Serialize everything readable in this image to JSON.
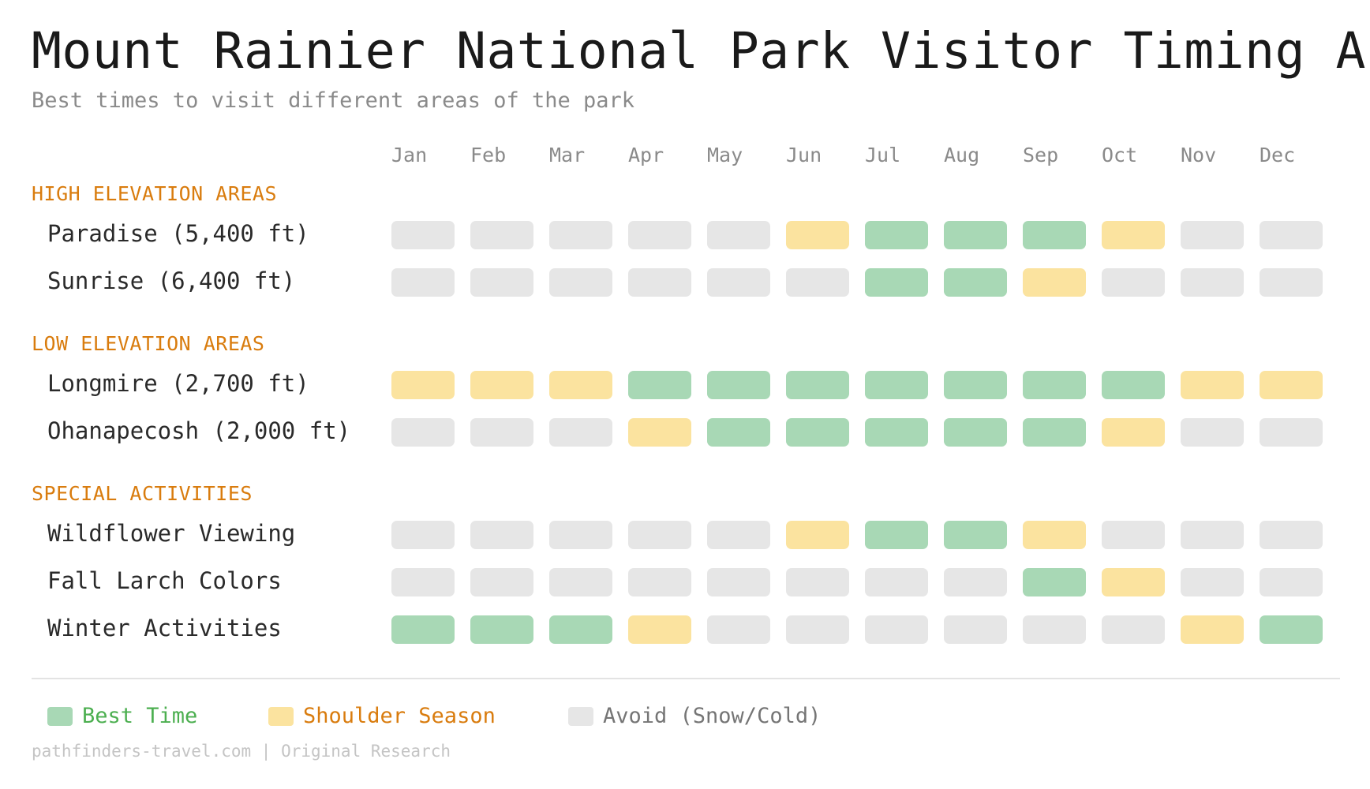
{
  "chart_data": {
    "type": "heatmap",
    "title": "Mount Rainier National Park Visitor Timing Ar",
    "subtitle": "Best times to visit different areas of the park",
    "months": [
      "Jan",
      "Feb",
      "Mar",
      "Apr",
      "May",
      "Jun",
      "Jul",
      "Aug",
      "Sep",
      "Oct",
      "Nov",
      "Dec"
    ],
    "levels": {
      "best": {
        "label": "Best Time",
        "color": "#a8d8b5",
        "text_color": "#4caf50"
      },
      "shoulder": {
        "label": "Shoulder Season",
        "color": "#fbe39f",
        "text_color": "#d97c0e"
      },
      "avoid": {
        "label": "Avoid (Snow/Cold)",
        "color": "#e6e6e6",
        "text_color": "#757575"
      }
    },
    "sections": [
      {
        "name": "HIGH ELEVATION AREAS",
        "rows": [
          {
            "label": "Paradise (5,400 ft)",
            "values": [
              "avoid",
              "avoid",
              "avoid",
              "avoid",
              "avoid",
              "shoulder",
              "best",
              "best",
              "best",
              "shoulder",
              "avoid",
              "avoid"
            ]
          },
          {
            "label": "Sunrise (6,400 ft)",
            "values": [
              "avoid",
              "avoid",
              "avoid",
              "avoid",
              "avoid",
              "avoid",
              "best",
              "best",
              "shoulder",
              "avoid",
              "avoid",
              "avoid"
            ]
          }
        ]
      },
      {
        "name": "LOW ELEVATION AREAS",
        "rows": [
          {
            "label": "Longmire (2,700 ft)",
            "values": [
              "shoulder",
              "shoulder",
              "shoulder",
              "best",
              "best",
              "best",
              "best",
              "best",
              "best",
              "best",
              "shoulder",
              "shoulder"
            ]
          },
          {
            "label": "Ohanapecosh (2,000 ft)",
            "values": [
              "avoid",
              "avoid",
              "avoid",
              "shoulder",
              "best",
              "best",
              "best",
              "best",
              "best",
              "shoulder",
              "avoid",
              "avoid"
            ]
          }
        ]
      },
      {
        "name": "SPECIAL ACTIVITIES",
        "rows": [
          {
            "label": "Wildflower Viewing",
            "values": [
              "avoid",
              "avoid",
              "avoid",
              "avoid",
              "avoid",
              "shoulder",
              "best",
              "best",
              "shoulder",
              "avoid",
              "avoid",
              "avoid"
            ]
          },
          {
            "label": "Fall Larch Colors",
            "values": [
              "avoid",
              "avoid",
              "avoid",
              "avoid",
              "avoid",
              "avoid",
              "avoid",
              "avoid",
              "best",
              "shoulder",
              "avoid",
              "avoid"
            ]
          },
          {
            "label": "Winter Activities",
            "values": [
              "best",
              "best",
              "best",
              "shoulder",
              "avoid",
              "avoid",
              "avoid",
              "avoid",
              "avoid",
              "avoid",
              "shoulder",
              "best"
            ]
          }
        ]
      }
    ],
    "section_color": "#d97c0e",
    "legend": [
      "best",
      "shoulder",
      "avoid"
    ]
  },
  "footer": "pathfinders-travel.com | Original Research"
}
